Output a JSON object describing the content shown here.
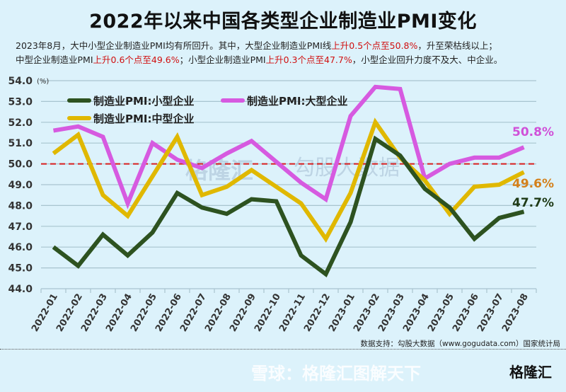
{
  "title": "2022年以来中国各类型企业制造业PMI变化",
  "subtitle": {
    "line1_a": "2023年8月，大中小型企业制造业PMI均有所回升。其中，大型企业制造业PMI线",
    "line1_red": "上升0.5个点至50.8%",
    "line1_b": "，升至荣枯线以上；",
    "line2_a": "中型企业制造业PMI",
    "line2_red1": "上升0.6个点至49.6%",
    "line2_b": "；小型企业制造业PMI",
    "line2_red2": "上升0.3个点至47.7%",
    "line2_c": "，小型企业回升力度不及大、中企业。"
  },
  "chart_data": {
    "type": "line",
    "title": "2022年以来中国各类型企业制造业PMI变化",
    "ylabel": "(%)",
    "ylim": [
      44.0,
      54.0
    ],
    "yticks": [
      "44.0",
      "45.0",
      "46.0",
      "47.0",
      "48.0",
      "49.0",
      "50.0",
      "51.0",
      "52.0",
      "53.0",
      "54.0"
    ],
    "grid": true,
    "legend": "top-left",
    "reference_line": {
      "value": 50.0,
      "color": "#d81e1e",
      "style": "dashed"
    },
    "categories": [
      "2022-01",
      "2022-02",
      "2022-03",
      "2022-04",
      "2022-05",
      "2022-06",
      "2022-07",
      "2022-08",
      "2022-09",
      "2022-10",
      "2022-11",
      "2022-12",
      "2023-01",
      "2023-02",
      "2023-03",
      "2023-04",
      "2023-05",
      "2023-06",
      "2023-07",
      "2023-08"
    ],
    "series": [
      {
        "name": "制造业PMI:小型企业",
        "color": "#2d5220",
        "end_label": "47.7%",
        "label_color": "#1e3a16",
        "values": [
          46.0,
          45.1,
          46.6,
          45.6,
          46.7,
          48.6,
          47.9,
          47.6,
          48.3,
          48.2,
          45.6,
          44.7,
          47.2,
          51.2,
          50.4,
          48.8,
          47.9,
          46.4,
          47.4,
          47.7
        ]
      },
      {
        "name": "制造业PMI:大型企业",
        "color": "#d65ae0",
        "end_label": "50.8%",
        "label_color": "#d050d8",
        "values": [
          51.6,
          51.8,
          51.3,
          48.1,
          51.0,
          50.2,
          49.8,
          50.5,
          51.1,
          50.1,
          49.1,
          48.3,
          52.3,
          53.7,
          53.6,
          49.3,
          50.0,
          50.3,
          50.3,
          50.8
        ]
      },
      {
        "name": "制造业PMI:中型企业",
        "color": "#e0b800",
        "end_label": "49.6%",
        "label_color": "#d4801a",
        "values": [
          50.5,
          51.4,
          48.5,
          47.5,
          49.4,
          51.3,
          48.5,
          48.9,
          49.7,
          48.9,
          48.1,
          46.4,
          48.6,
          52.0,
          50.3,
          49.2,
          47.6,
          48.9,
          49.0,
          49.6
        ]
      }
    ]
  },
  "source": "数据支持：勾股大数据（www.gogudata.com）国家统计局",
  "watermarks": {
    "center1": "格隆汇",
    "center2": "勾股大数据",
    "bottom": "雪球：格隆汇图解天下",
    "logo": "格隆汇"
  }
}
